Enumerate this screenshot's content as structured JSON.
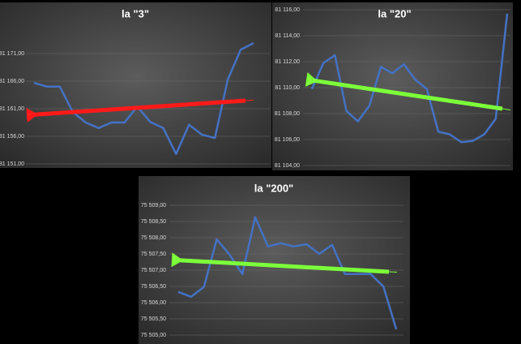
{
  "chart_data": [
    {
      "type": "line",
      "title": "la \"3\"",
      "arrow_color": "#ff1a1a",
      "categories": [
        null,
        null,
        null,
        null,
        null,
        null,
        null,
        null,
        null,
        null,
        null,
        null,
        null,
        null,
        null,
        null,
        null,
        null
      ],
      "series": [
        {
          "color": "#4472c4",
          "values": [
            81165.7,
            81165.0,
            81165.0,
            81160.4,
            81158.5,
            81157.5,
            81158.5,
            81158.5,
            81161.4,
            81158.6,
            81157.5,
            81152.8,
            81158.1,
            81156.3,
            81155.7,
            81166.3,
            81171.7,
            81172.9
          ]
        }
      ],
      "ylim": [
        81151,
        81176
      ],
      "yticks": [
        {
          "value": 81151,
          "label": "81 151,00"
        },
        {
          "value": 81156,
          "label": "81 156,00"
        },
        {
          "value": 81161,
          "label": "81 161,00"
        },
        {
          "value": 81166,
          "label": "81 166,00"
        },
        {
          "value": 81171,
          "label": "81 171,00"
        }
      ],
      "grid": true
    },
    {
      "type": "line",
      "title": "la \"20\"",
      "arrow_color": "#7cff3a",
      "categories": [
        null,
        null,
        null,
        null,
        null,
        null,
        null,
        null,
        null,
        null,
        null,
        null,
        null,
        null,
        null,
        null,
        null,
        null
      ],
      "series": [
        {
          "color": "#4472c4",
          "values": [
            81109.9,
            81111.9,
            81112.5,
            81108.2,
            81107.4,
            81108.6,
            81111.6,
            81111.1,
            81111.8,
            81110.6,
            81109.9,
            81106.6,
            81106.4,
            81105.8,
            81105.9,
            81106.4,
            81107.6,
            81115.7
          ]
        }
      ],
      "ylim": [
        81104,
        81116
      ],
      "yticks": [
        {
          "value": 81104,
          "label": "81 104,00"
        },
        {
          "value": 81106,
          "label": "81 106,00"
        },
        {
          "value": 81108,
          "label": "81 108,00"
        },
        {
          "value": 81110,
          "label": "81 110,00"
        },
        {
          "value": 81112,
          "label": "81 112,00"
        },
        {
          "value": 81114,
          "label": "81 114,00"
        },
        {
          "value": 81116,
          "label": "81 116,00"
        }
      ],
      "grid": true
    },
    {
      "type": "line",
      "title": "la \"200\"",
      "arrow_color": "#7cff3a",
      "categories": [
        null,
        null,
        null,
        null,
        null,
        null,
        null,
        null,
        null,
        null,
        null,
        null,
        null,
        null,
        null,
        null,
        null,
        null
      ],
      "series": [
        {
          "color": "#4472c4",
          "values": [
            75506.33,
            75506.18,
            75506.48,
            75507.95,
            75507.48,
            75506.88,
            75508.63,
            75507.73,
            75507.83,
            75507.73,
            75507.8,
            75507.5,
            75507.78,
            75506.88,
            75506.88,
            75506.88,
            75506.5,
            75505.18
          ]
        }
      ],
      "ylim": [
        75505,
        75509
      ],
      "yticks": [
        {
          "value": 75505,
          "label": "75 505,00"
        },
        {
          "value": 75505.5,
          "label": "75 505,50"
        },
        {
          "value": 75506,
          "label": "75 506,00"
        },
        {
          "value": 75506.5,
          "label": "75 506,50"
        },
        {
          "value": 75507,
          "label": "75 507,00"
        },
        {
          "value": 75507.5,
          "label": "75 507,50"
        },
        {
          "value": 75508,
          "label": "75 508,00"
        },
        {
          "value": 75508.5,
          "label": "75 508,50"
        },
        {
          "value": 75509,
          "label": "75 509,00"
        }
      ],
      "grid": true
    }
  ]
}
